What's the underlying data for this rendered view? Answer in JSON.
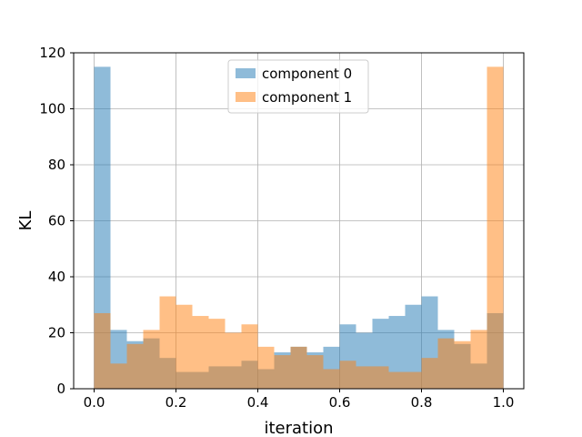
{
  "chart_data": {
    "type": "bar",
    "subtype": "histogram-overlay",
    "title": "",
    "xlabel": "iteration",
    "ylabel": "KL",
    "xlim": [
      -0.05,
      1.05
    ],
    "ylim": [
      0,
      120
    ],
    "xticks": [
      "0.0",
      "0.2",
      "0.4",
      "0.6",
      "0.8",
      "1.0"
    ],
    "yticks": [
      "0",
      "20",
      "40",
      "60",
      "80",
      "100",
      "120"
    ],
    "grid": true,
    "legend_position": "upper center",
    "bin_edges": [
      0.0,
      0.04,
      0.08,
      0.12,
      0.16,
      0.2,
      0.24,
      0.28,
      0.32,
      0.36,
      0.4,
      0.44,
      0.48,
      0.52,
      0.56,
      0.6,
      0.64,
      0.68,
      0.72,
      0.76,
      0.8,
      0.84,
      0.88,
      0.92,
      0.96,
      1.0
    ],
    "series": [
      {
        "name": "component 0",
        "color": "#1f77b4",
        "alpha": 0.5,
        "values": [
          115,
          21,
          17,
          18,
          11,
          6,
          6,
          8,
          8,
          10,
          7,
          13,
          15,
          13,
          15,
          23,
          20,
          25,
          26,
          30,
          33,
          21,
          16,
          9,
          27
        ]
      },
      {
        "name": "component 1",
        "color": "#ff7f0e",
        "alpha": 0.5,
        "values": [
          27,
          9,
          16,
          21,
          33,
          30,
          26,
          25,
          20,
          23,
          15,
          12,
          15,
          12,
          7,
          10,
          8,
          8,
          6,
          6,
          11,
          18,
          17,
          21,
          115
        ]
      }
    ]
  }
}
